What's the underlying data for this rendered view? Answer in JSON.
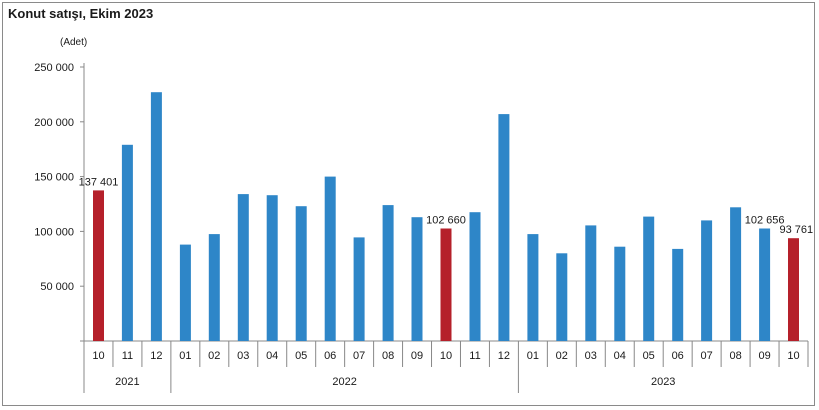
{
  "chart_data": {
    "type": "bar",
    "title": "Konut satışı, Ekim 2023",
    "ylabel": "(Adet)",
    "xlabel": "",
    "ylim": [
      0,
      250000
    ],
    "yticks": [
      0,
      50000,
      100000,
      150000,
      200000,
      250000
    ],
    "ytick_labels": [
      "",
      "50 000",
      "100 000",
      "150 000",
      "200 000",
      "250 000"
    ],
    "categories": [
      "10",
      "11",
      "12",
      "01",
      "02",
      "03",
      "04",
      "05",
      "06",
      "07",
      "08",
      "09",
      "10",
      "11",
      "12",
      "01",
      "02",
      "03",
      "04",
      "05",
      "06",
      "07",
      "08",
      "09",
      "10"
    ],
    "values": [
      137401,
      179000,
      227000,
      88000,
      97500,
      134000,
      133000,
      123000,
      150000,
      94500,
      124000,
      113000,
      102660,
      117500,
      207000,
      97500,
      80000,
      105500,
      86000,
      113500,
      84000,
      110000,
      122000,
      102656,
      93761
    ],
    "highlight": [
      true,
      false,
      false,
      false,
      false,
      false,
      false,
      false,
      false,
      false,
      false,
      false,
      true,
      false,
      false,
      false,
      false,
      false,
      false,
      false,
      false,
      false,
      false,
      false,
      true
    ],
    "year_groups": [
      {
        "label": "2021",
        "start": 0,
        "end": 2
      },
      {
        "label": "2022",
        "start": 3,
        "end": 14
      },
      {
        "label": "2023",
        "start": 15,
        "end": 24
      }
    ],
    "data_labels": [
      {
        "index": 0,
        "text": "137 401"
      },
      {
        "index": 12,
        "text": "102 660"
      },
      {
        "index": 23,
        "text": "102 656"
      },
      {
        "index": 24,
        "text": "93 761"
      }
    ],
    "colors": {
      "bar": "#2e86c8",
      "highlight": "#b5202a",
      "axis": "#888888"
    },
    "grid": false,
    "legend": "none"
  }
}
